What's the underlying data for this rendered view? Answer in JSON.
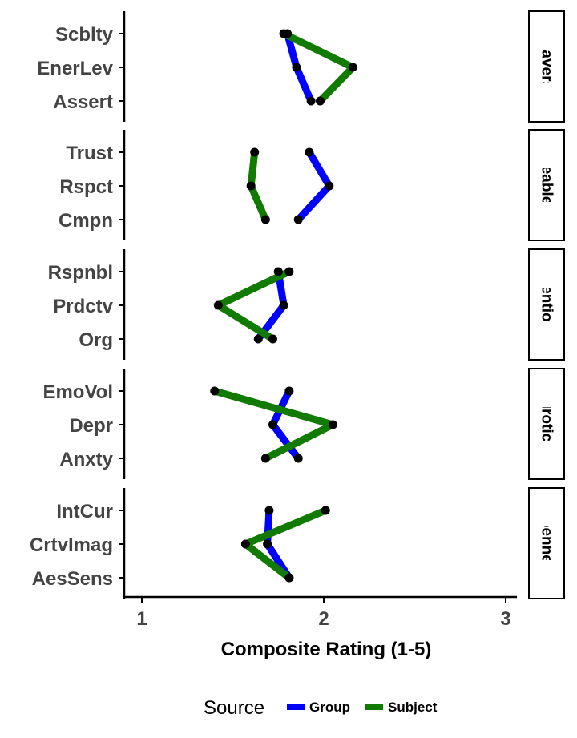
{
  "chart_data": {
    "type": "line",
    "xlabel": "Composite Rating (1-5)",
    "xlim": [
      0.9,
      3.2
    ],
    "x_ticks": [
      1,
      2,
      3
    ],
    "grid": false,
    "legend": {
      "title": "Source",
      "position": "bottom",
      "entries": [
        {
          "name": "Group",
          "color": "#0000ff"
        },
        {
          "name": "Subject",
          "color": "#117a00"
        }
      ]
    },
    "point_color": "#000000",
    "panels": [
      {
        "facet": "Extraversion",
        "categories": [
          "Scblty",
          "EnerLev",
          "Assert"
        ],
        "series": [
          {
            "name": "Group",
            "values": [
              1.8,
              1.85,
              1.93
            ]
          },
          {
            "name": "Subject",
            "values": [
              1.78,
              2.16,
              1.98
            ]
          }
        ]
      },
      {
        "facet": "Agreeableness",
        "categories": [
          "Trust",
          "Rspct",
          "Cmpn"
        ],
        "series": [
          {
            "name": "Group",
            "values": [
              1.92,
              2.03,
              1.86
            ]
          },
          {
            "name": "Subject",
            "values": [
              1.62,
              1.6,
              1.68
            ]
          }
        ]
      },
      {
        "facet": "Conscientiousness",
        "categories": [
          "Rspnbl",
          "Prdctv",
          "Org"
        ],
        "series": [
          {
            "name": "Group",
            "values": [
              1.75,
              1.78,
              1.64
            ]
          },
          {
            "name": "Subject",
            "values": [
              1.81,
              1.42,
              1.72
            ]
          }
        ]
      },
      {
        "facet": "Neuroticism",
        "categories": [
          "EmoVol",
          "Depr",
          "Anxty"
        ],
        "series": [
          {
            "name": "Group",
            "values": [
              1.81,
              1.72,
              1.86
            ]
          },
          {
            "name": "Subject",
            "values": [
              1.4,
              2.05,
              1.68
            ]
          }
        ]
      },
      {
        "facet": "Openness",
        "categories": [
          "IntCur",
          "CrtvImag",
          "AesSens"
        ],
        "series": [
          {
            "name": "Group",
            "values": [
              1.7,
              1.69,
              1.81
            ]
          },
          {
            "name": "Subject",
            "values": [
              2.01,
              1.57,
              1.81
            ]
          }
        ]
      }
    ]
  }
}
